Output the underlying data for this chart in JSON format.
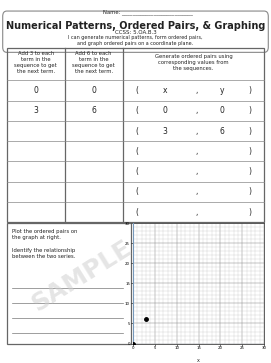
{
  "title": "Numerical Patterns, Ordered Pairs, & Graphing",
  "ccss": "CCSS: 5.OA.B.3",
  "subtitle": "I can generate numerical patterns, form ordered pairs,\nand graph ordered pairs on a coordinate plane.",
  "name_label": "Name: ___________________________",
  "col1_header": "Add 3 to each\nterm in the\nsequence to get\nthe next term.",
  "col2_header": "Add 6 to each\nterm in the\nsequence to get\nthe next term.",
  "col3_header": "Generate ordered pairs using\ncorresponding values from\nthe sequences.",
  "col1_values": [
    "0",
    "3",
    "",
    "",
    "",
    ""
  ],
  "col2_values": [
    "0",
    "6",
    "",
    "",
    "",
    ""
  ],
  "ordered_pairs_row0": [
    "x",
    "y"
  ],
  "ordered_pairs": [
    [
      "0",
      "0"
    ],
    [
      "3",
      "6"
    ],
    [
      "",
      ""
    ],
    [
      "",
      ""
    ],
    [
      "",
      ""
    ],
    [
      "",
      ""
    ]
  ],
  "bottom_left_text1": "Plot the ordered pairs on\nthe graph at right.",
  "bottom_left_text2": "Identify the relationship\nbetween the two series.",
  "graph_xlim": [
    0,
    30
  ],
  "graph_ylim": [
    0,
    30
  ],
  "graph_xticks": [
    0,
    5,
    10,
    15,
    20,
    25,
    30
  ],
  "graph_yticks": [
    0,
    5,
    10,
    15,
    20,
    25,
    30
  ],
  "graph_xlabel": "x",
  "points": [
    [
      0,
      0
    ],
    [
      3,
      6
    ]
  ],
  "sample_text": "SAMPLE",
  "bg_color": "#ffffff",
  "border_color": "#666666",
  "grid_color": "#999999",
  "text_color": "#222222",
  "sample_color": "#d0d0d0",
  "axis_color": "#7799bb"
}
